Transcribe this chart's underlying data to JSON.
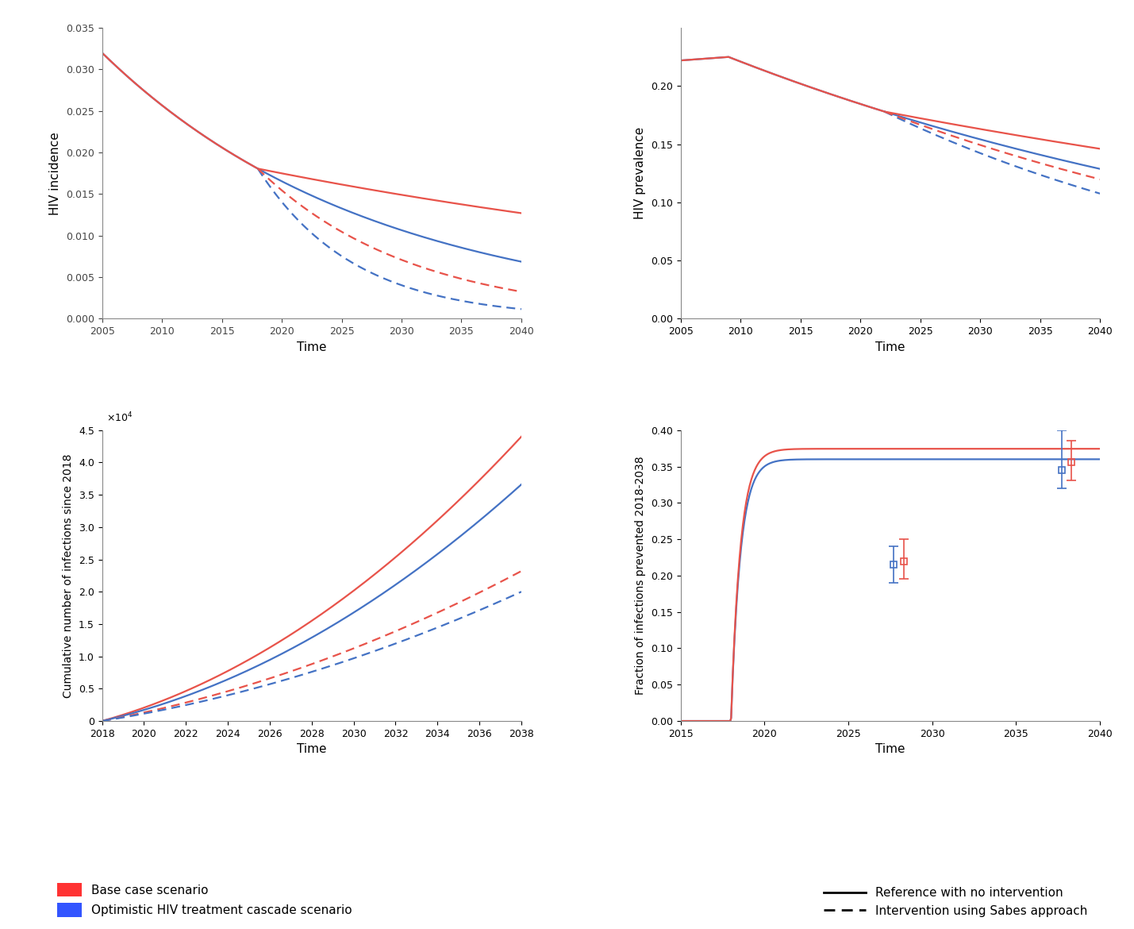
{
  "red_color": "#E8534A",
  "blue_color": "#4472C4",
  "background": "#FFFFFF",
  "ax1": {
    "xlabel": "Time",
    "ylabel": "HIV incidence",
    "xlim": [
      2005,
      2040
    ],
    "ylim": [
      0,
      0.035
    ],
    "yticks": [
      0,
      0.005,
      0.01,
      0.015,
      0.02,
      0.025,
      0.03,
      0.035
    ],
    "xticks": [
      2005,
      2010,
      2015,
      2020,
      2025,
      2030,
      2035,
      2040
    ]
  },
  "ax2": {
    "xlabel": "Time",
    "ylabel": "HIV prevalence",
    "xlim": [
      2005,
      2040
    ],
    "ylim": [
      0,
      0.25
    ],
    "yticks": [
      0,
      0.05,
      0.1,
      0.15,
      0.2
    ],
    "xticks": [
      2005,
      2010,
      2015,
      2020,
      2025,
      2030,
      2035,
      2040
    ]
  },
  "ax3": {
    "xlabel": "Time",
    "ylabel": "Cumulative number of infections since 2018",
    "xlim": [
      2018,
      2038
    ],
    "ylim": [
      0,
      45000
    ],
    "yticks": [
      0,
      5000,
      10000,
      15000,
      20000,
      25000,
      30000,
      35000,
      40000,
      45000
    ],
    "xticks": [
      2018,
      2020,
      2022,
      2024,
      2026,
      2028,
      2030,
      2032,
      2034,
      2036,
      2038
    ]
  },
  "ax4": {
    "xlabel": "Time",
    "ylabel": "Fraction of infections prevented 2018-2038",
    "xlim": [
      2015,
      2040
    ],
    "ylim": [
      0,
      0.4
    ],
    "yticks": [
      0,
      0.05,
      0.1,
      0.15,
      0.2,
      0.25,
      0.3,
      0.35,
      0.4
    ],
    "xticks": [
      2015,
      2020,
      2025,
      2030,
      2035,
      2040
    ]
  },
  "legend_color_red": "#FF3333",
  "legend_color_blue": "#3355FF",
  "legend_label1": "Base case scenario",
  "legend_label2": "Optimistic HIV treatment cascade scenario",
  "legend_label3": "Reference with no intervention",
  "legend_label4": "Intervention using Sabes approach"
}
